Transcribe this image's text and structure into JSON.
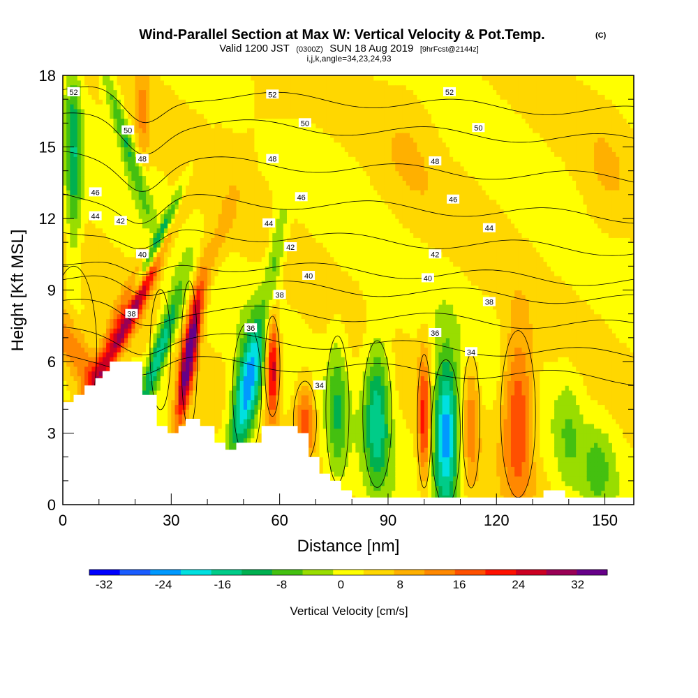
{
  "title": {
    "main": "Wind-Parallel Section at Max W: Vertical Velocity & Pot.Temp.",
    "tag": "(C)",
    "valid_prefix": "Valid 1200 JST",
    "utc": "(0300Z)",
    "date": "SUN 18 Aug 2019",
    "forecast": "[9hrFcst@2144z]",
    "grid": "i,j,k,angle=34,23,24,93"
  },
  "colors": {
    "scale": [
      "#0000ff",
      "#1a5cff",
      "#0099ff",
      "#00e0e0",
      "#00cc88",
      "#00b050",
      "#44c010",
      "#99dd00",
      "#ffff00",
      "#ffd700",
      "#ffb000",
      "#ff8800",
      "#ff5000",
      "#ff1000",
      "#cc0022",
      "#990055",
      "#660088"
    ],
    "terrain": "#ffffff",
    "contour": "#000000"
  },
  "chart_data": {
    "type": "heatmap",
    "xlabel": "Distance [nm]",
    "ylabel": "Height [Kft MSL]",
    "xlim": [
      0,
      158
    ],
    "ylim": [
      0,
      18
    ],
    "x_ticks": [
      0,
      30,
      60,
      90,
      120,
      150
    ],
    "y_ticks": [
      0,
      3,
      6,
      9,
      12,
      15,
      18
    ],
    "colorbar": {
      "title": "Vertical Velocity [cm/s]",
      "min": -34,
      "max": 36,
      "step": 4,
      "tick_values": [
        -32,
        -24,
        -16,
        -8,
        0,
        8,
        16,
        24,
        32
      ]
    },
    "terrain_height_kft": [
      [
        0,
        4.3
      ],
      [
        3,
        4.3
      ],
      [
        3,
        4.6
      ],
      [
        6,
        4.6
      ],
      [
        6,
        5.0
      ],
      [
        9,
        5.0
      ],
      [
        9,
        5.3
      ],
      [
        11,
        5.3
      ],
      [
        11,
        5.6
      ],
      [
        13,
        5.6
      ],
      [
        13,
        6.0
      ],
      [
        22,
        6.0
      ],
      [
        22,
        4.6
      ],
      [
        26,
        4.6
      ],
      [
        26,
        3.3
      ],
      [
        29,
        3.3
      ],
      [
        29,
        3.0
      ],
      [
        32,
        3.0
      ],
      [
        32,
        3.3
      ],
      [
        34,
        3.3
      ],
      [
        34,
        3.6
      ],
      [
        38,
        3.6
      ],
      [
        38,
        3.3
      ],
      [
        42,
        3.3
      ],
      [
        42,
        2.6
      ],
      [
        45,
        2.6
      ],
      [
        45,
        2.3
      ],
      [
        48,
        2.3
      ],
      [
        48,
        2.6
      ],
      [
        55,
        2.6
      ],
      [
        55,
        3.3
      ],
      [
        65,
        3.3
      ],
      [
        65,
        3.0
      ],
      [
        68,
        3.0
      ],
      [
        68,
        2.0
      ],
      [
        71,
        2.0
      ],
      [
        71,
        1.3
      ],
      [
        74,
        1.3
      ],
      [
        74,
        1.0
      ],
      [
        77,
        1.0
      ],
      [
        77,
        0.6
      ],
      [
        80,
        0.6
      ],
      [
        80,
        0.3
      ],
      [
        85,
        0.3
      ],
      [
        85,
        0.3
      ],
      [
        133,
        0.3
      ],
      [
        133,
        0.6
      ],
      [
        139,
        0.6
      ],
      [
        139,
        0.3
      ],
      [
        158,
        0.3
      ]
    ],
    "vertical_velocity_cells": [
      {
        "x": 3,
        "y": 6.5,
        "w": -4,
        "sx": 4,
        "sy": 2.5,
        "v": 14
      },
      {
        "x": 18,
        "y": 8.0,
        "w": 3,
        "sx": 2.2,
        "sy": 2.5,
        "v": 32
      },
      {
        "x": 24,
        "y": 10.3,
        "w": 3,
        "sx": 1.2,
        "sy": 2.0,
        "v": -26
      },
      {
        "x": 27,
        "y": 6.5,
        "w": 2,
        "sx": 1.8,
        "sy": 1.8,
        "v": -20
      },
      {
        "x": 35,
        "y": 6.3,
        "w": 1,
        "sx": 1.4,
        "sy": 2.2,
        "v": 32
      },
      {
        "x": 51,
        "y": 4.8,
        "w": 1,
        "sx": 2.5,
        "sy": 2.0,
        "v": -28
      },
      {
        "x": 58,
        "y": 5.8,
        "w": 0,
        "sx": 1.3,
        "sy": 1.5,
        "v": 26
      },
      {
        "x": 67,
        "y": 3.5,
        "w": 0,
        "sx": 2.0,
        "sy": 1.2,
        "v": 16
      },
      {
        "x": 76,
        "y": 4.0,
        "w": 0,
        "sx": 2.0,
        "sy": 2.2,
        "v": -10
      },
      {
        "x": 87,
        "y": 3.8,
        "w": 0,
        "sx": 2.5,
        "sy": 2.2,
        "v": -18
      },
      {
        "x": 100,
        "y": 3.5,
        "w": 0,
        "sx": 1.2,
        "sy": 2.0,
        "v": 18
      },
      {
        "x": 106,
        "y": 3.0,
        "w": 0,
        "sx": 2.5,
        "sy": 2.2,
        "v": -28
      },
      {
        "x": 113,
        "y": 3.5,
        "w": 0,
        "sx": 1.5,
        "sy": 2.0,
        "v": 10
      },
      {
        "x": 126,
        "y": 3.8,
        "w": 0,
        "sx": 3.0,
        "sy": 2.5,
        "v": 18
      },
      {
        "x": 140,
        "y": 3.0,
        "w": 0,
        "sx": 2.5,
        "sy": 1.8,
        "v": -6
      },
      {
        "x": 148,
        "y": 1.5,
        "w": 0,
        "sx": 3.0,
        "sy": 1.2,
        "v": -8
      },
      {
        "x": 3,
        "y": 14.5,
        "w": 0,
        "sx": 1.5,
        "sy": 3.0,
        "v": -14
      },
      {
        "x": 17,
        "y": 15.5,
        "w": -2,
        "sx": 1.5,
        "sy": 2.5,
        "v": -12
      },
      {
        "x": 22,
        "y": 16.5,
        "w": 0,
        "sx": 1.5,
        "sy": 1.5,
        "v": 8
      },
      {
        "x": 59,
        "y": 10.5,
        "w": 1,
        "sx": 1.5,
        "sy": 1.5,
        "v": -10
      },
      {
        "x": 42,
        "y": 10.5,
        "w": 2,
        "sx": 2.0,
        "sy": 2.0,
        "v": 6
      },
      {
        "x": 150,
        "y": 13.5,
        "w": 0,
        "sx": 5.0,
        "sy": 2.5,
        "v": 3
      },
      {
        "x": 96,
        "y": 15.5,
        "w": 0,
        "sx": 6.0,
        "sy": 2.5,
        "v": 3
      },
      {
        "x": 55,
        "y": 16.5,
        "w": 0,
        "sx": 8.0,
        "sy": 1.5,
        "v": 3
      },
      {
        "x": 110,
        "y": 12.5,
        "w": 0,
        "sx": 10.0,
        "sy": 1.5,
        "v": 1
      }
    ],
    "potential_temperature_contours": [
      {
        "label": "52",
        "base": 17.4
      },
      {
        "label": "50",
        "base": 16.2
      },
      {
        "label": "48",
        "base": 14.6
      },
      {
        "label": "46",
        "base": 13.0
      },
      {
        "label": "44",
        "base": 11.6
      },
      {
        "label": "42",
        "base": 10.3
      },
      {
        "label": "40",
        "base": 9.5
      },
      {
        "label": "38",
        "base": 8.4
      },
      {
        "label": "36",
        "base": 7.2
      },
      {
        "label": "34",
        "base": 6.2
      }
    ],
    "contour_labels": [
      {
        "text": "52",
        "x": 3,
        "y": 17.3
      },
      {
        "text": "52",
        "x": 58,
        "y": 17.2
      },
      {
        "text": "52",
        "x": 107,
        "y": 17.3
      },
      {
        "text": "50",
        "x": 18,
        "y": 15.7
      },
      {
        "text": "50",
        "x": 67,
        "y": 16.0
      },
      {
        "text": "50",
        "x": 115,
        "y": 15.8
      },
      {
        "text": "48",
        "x": 22,
        "y": 14.5
      },
      {
        "text": "48",
        "x": 58,
        "y": 14.5
      },
      {
        "text": "48",
        "x": 103,
        "y": 14.4
      },
      {
        "text": "46",
        "x": 9,
        "y": 13.1
      },
      {
        "text": "46",
        "x": 66,
        "y": 12.9
      },
      {
        "text": "46",
        "x": 108,
        "y": 12.8
      },
      {
        "text": "44",
        "x": 9,
        "y": 12.1
      },
      {
        "text": "44",
        "x": 57,
        "y": 11.8
      },
      {
        "text": "44",
        "x": 118,
        "y": 11.6
      },
      {
        "text": "42",
        "x": 16,
        "y": 11.9
      },
      {
        "text": "42",
        "x": 63,
        "y": 10.8
      },
      {
        "text": "42",
        "x": 103,
        "y": 10.5
      },
      {
        "text": "40",
        "x": 22,
        "y": 10.5
      },
      {
        "text": "40",
        "x": 68,
        "y": 9.6
      },
      {
        "text": "40",
        "x": 101,
        "y": 9.5
      },
      {
        "text": "38",
        "x": 19,
        "y": 8.0
      },
      {
        "text": "38",
        "x": 60,
        "y": 8.8
      },
      {
        "text": "38",
        "x": 118,
        "y": 8.5
      },
      {
        "text": "36",
        "x": 52,
        "y": 7.4
      },
      {
        "text": "36",
        "x": 103,
        "y": 7.2
      },
      {
        "text": "34",
        "x": 71,
        "y": 5.0
      },
      {
        "text": "34",
        "x": 113,
        "y": 6.4
      }
    ]
  }
}
